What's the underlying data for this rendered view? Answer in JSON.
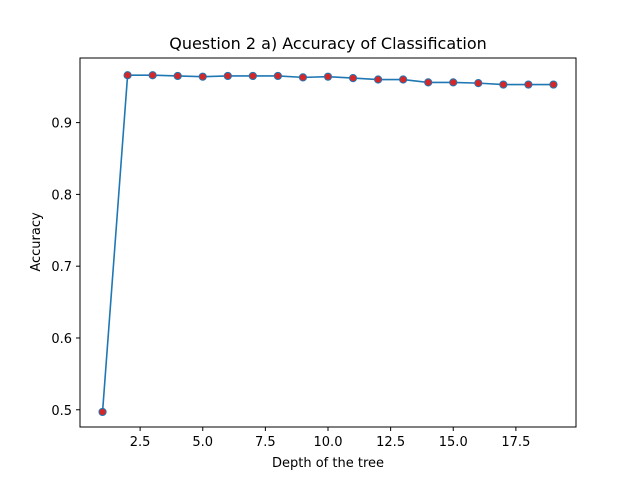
{
  "chart_data": {
    "type": "line",
    "title": "Question 2 a) Accuracy of Classification",
    "xlabel": "Depth of the tree",
    "ylabel": "Accuracy",
    "xlim": [
      0.1,
      19.9
    ],
    "ylim": [
      0.476,
      0.99
    ],
    "xticks": [
      2.5,
      5.0,
      7.5,
      10.0,
      12.5,
      15.0,
      17.5
    ],
    "xtick_labels": [
      "2.5",
      "5.0",
      "7.5",
      "10.0",
      "12.5",
      "15.0",
      "17.5"
    ],
    "yticks": [
      0.5,
      0.6,
      0.7,
      0.8,
      0.9
    ],
    "ytick_labels": [
      "0.5",
      "0.6",
      "0.7",
      "0.8",
      "0.9"
    ],
    "grid": false,
    "series": [
      {
        "line_color": "#1f77b4",
        "marker_face": "#d62728",
        "marker_edge": "#1f77b4",
        "x": [
          1,
          2,
          3,
          4,
          5,
          6,
          7,
          8,
          9,
          10,
          11,
          12,
          13,
          14,
          15,
          16,
          17,
          18,
          19
        ],
        "y": [
          0.497,
          0.966,
          0.966,
          0.965,
          0.964,
          0.965,
          0.965,
          0.965,
          0.963,
          0.964,
          0.962,
          0.96,
          0.96,
          0.956,
          0.956,
          0.955,
          0.953,
          0.953,
          0.953
        ]
      }
    ]
  }
}
